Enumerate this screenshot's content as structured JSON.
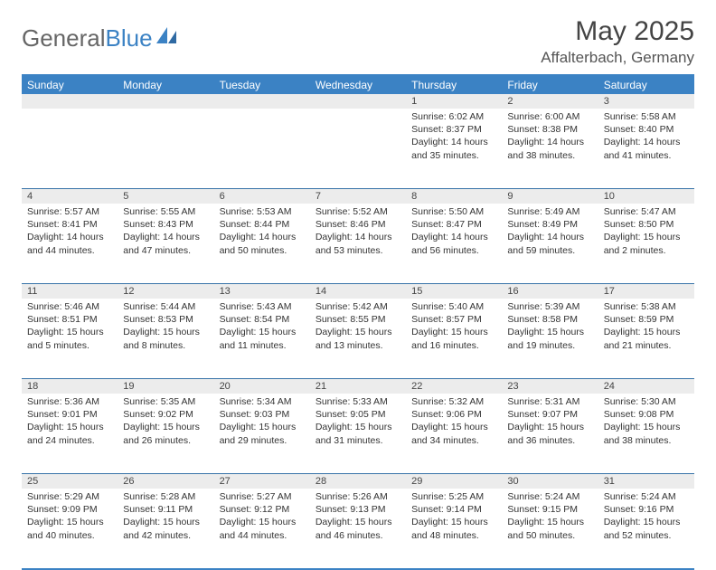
{
  "logo": {
    "part1": "General",
    "part2": "Blue"
  },
  "title": "May 2025",
  "location": "Affalterbach, Germany",
  "colors": {
    "header_bg": "#3b82c4",
    "header_text": "#ffffff",
    "daynum_bg": "#ececec",
    "border": "#3773a8",
    "text": "#333333"
  },
  "day_headers": [
    "Sunday",
    "Monday",
    "Tuesday",
    "Wednesday",
    "Thursday",
    "Friday",
    "Saturday"
  ],
  "weeks": [
    [
      {
        "day": "",
        "sunrise": "",
        "sunset": "",
        "daylight1": "",
        "daylight2": ""
      },
      {
        "day": "",
        "sunrise": "",
        "sunset": "",
        "daylight1": "",
        "daylight2": ""
      },
      {
        "day": "",
        "sunrise": "",
        "sunset": "",
        "daylight1": "",
        "daylight2": ""
      },
      {
        "day": "",
        "sunrise": "",
        "sunset": "",
        "daylight1": "",
        "daylight2": ""
      },
      {
        "day": "1",
        "sunrise": "Sunrise: 6:02 AM",
        "sunset": "Sunset: 8:37 PM",
        "daylight1": "Daylight: 14 hours",
        "daylight2": "and 35 minutes."
      },
      {
        "day": "2",
        "sunrise": "Sunrise: 6:00 AM",
        "sunset": "Sunset: 8:38 PM",
        "daylight1": "Daylight: 14 hours",
        "daylight2": "and 38 minutes."
      },
      {
        "day": "3",
        "sunrise": "Sunrise: 5:58 AM",
        "sunset": "Sunset: 8:40 PM",
        "daylight1": "Daylight: 14 hours",
        "daylight2": "and 41 minutes."
      }
    ],
    [
      {
        "day": "4",
        "sunrise": "Sunrise: 5:57 AM",
        "sunset": "Sunset: 8:41 PM",
        "daylight1": "Daylight: 14 hours",
        "daylight2": "and 44 minutes."
      },
      {
        "day": "5",
        "sunrise": "Sunrise: 5:55 AM",
        "sunset": "Sunset: 8:43 PM",
        "daylight1": "Daylight: 14 hours",
        "daylight2": "and 47 minutes."
      },
      {
        "day": "6",
        "sunrise": "Sunrise: 5:53 AM",
        "sunset": "Sunset: 8:44 PM",
        "daylight1": "Daylight: 14 hours",
        "daylight2": "and 50 minutes."
      },
      {
        "day": "7",
        "sunrise": "Sunrise: 5:52 AM",
        "sunset": "Sunset: 8:46 PM",
        "daylight1": "Daylight: 14 hours",
        "daylight2": "and 53 minutes."
      },
      {
        "day": "8",
        "sunrise": "Sunrise: 5:50 AM",
        "sunset": "Sunset: 8:47 PM",
        "daylight1": "Daylight: 14 hours",
        "daylight2": "and 56 minutes."
      },
      {
        "day": "9",
        "sunrise": "Sunrise: 5:49 AM",
        "sunset": "Sunset: 8:49 PM",
        "daylight1": "Daylight: 14 hours",
        "daylight2": "and 59 minutes."
      },
      {
        "day": "10",
        "sunrise": "Sunrise: 5:47 AM",
        "sunset": "Sunset: 8:50 PM",
        "daylight1": "Daylight: 15 hours",
        "daylight2": "and 2 minutes."
      }
    ],
    [
      {
        "day": "11",
        "sunrise": "Sunrise: 5:46 AM",
        "sunset": "Sunset: 8:51 PM",
        "daylight1": "Daylight: 15 hours",
        "daylight2": "and 5 minutes."
      },
      {
        "day": "12",
        "sunrise": "Sunrise: 5:44 AM",
        "sunset": "Sunset: 8:53 PM",
        "daylight1": "Daylight: 15 hours",
        "daylight2": "and 8 minutes."
      },
      {
        "day": "13",
        "sunrise": "Sunrise: 5:43 AM",
        "sunset": "Sunset: 8:54 PM",
        "daylight1": "Daylight: 15 hours",
        "daylight2": "and 11 minutes."
      },
      {
        "day": "14",
        "sunrise": "Sunrise: 5:42 AM",
        "sunset": "Sunset: 8:55 PM",
        "daylight1": "Daylight: 15 hours",
        "daylight2": "and 13 minutes."
      },
      {
        "day": "15",
        "sunrise": "Sunrise: 5:40 AM",
        "sunset": "Sunset: 8:57 PM",
        "daylight1": "Daylight: 15 hours",
        "daylight2": "and 16 minutes."
      },
      {
        "day": "16",
        "sunrise": "Sunrise: 5:39 AM",
        "sunset": "Sunset: 8:58 PM",
        "daylight1": "Daylight: 15 hours",
        "daylight2": "and 19 minutes."
      },
      {
        "day": "17",
        "sunrise": "Sunrise: 5:38 AM",
        "sunset": "Sunset: 8:59 PM",
        "daylight1": "Daylight: 15 hours",
        "daylight2": "and 21 minutes."
      }
    ],
    [
      {
        "day": "18",
        "sunrise": "Sunrise: 5:36 AM",
        "sunset": "Sunset: 9:01 PM",
        "daylight1": "Daylight: 15 hours",
        "daylight2": "and 24 minutes."
      },
      {
        "day": "19",
        "sunrise": "Sunrise: 5:35 AM",
        "sunset": "Sunset: 9:02 PM",
        "daylight1": "Daylight: 15 hours",
        "daylight2": "and 26 minutes."
      },
      {
        "day": "20",
        "sunrise": "Sunrise: 5:34 AM",
        "sunset": "Sunset: 9:03 PM",
        "daylight1": "Daylight: 15 hours",
        "daylight2": "and 29 minutes."
      },
      {
        "day": "21",
        "sunrise": "Sunrise: 5:33 AM",
        "sunset": "Sunset: 9:05 PM",
        "daylight1": "Daylight: 15 hours",
        "daylight2": "and 31 minutes."
      },
      {
        "day": "22",
        "sunrise": "Sunrise: 5:32 AM",
        "sunset": "Sunset: 9:06 PM",
        "daylight1": "Daylight: 15 hours",
        "daylight2": "and 34 minutes."
      },
      {
        "day": "23",
        "sunrise": "Sunrise: 5:31 AM",
        "sunset": "Sunset: 9:07 PM",
        "daylight1": "Daylight: 15 hours",
        "daylight2": "and 36 minutes."
      },
      {
        "day": "24",
        "sunrise": "Sunrise: 5:30 AM",
        "sunset": "Sunset: 9:08 PM",
        "daylight1": "Daylight: 15 hours",
        "daylight2": "and 38 minutes."
      }
    ],
    [
      {
        "day": "25",
        "sunrise": "Sunrise: 5:29 AM",
        "sunset": "Sunset: 9:09 PM",
        "daylight1": "Daylight: 15 hours",
        "daylight2": "and 40 minutes."
      },
      {
        "day": "26",
        "sunrise": "Sunrise: 5:28 AM",
        "sunset": "Sunset: 9:11 PM",
        "daylight1": "Daylight: 15 hours",
        "daylight2": "and 42 minutes."
      },
      {
        "day": "27",
        "sunrise": "Sunrise: 5:27 AM",
        "sunset": "Sunset: 9:12 PM",
        "daylight1": "Daylight: 15 hours",
        "daylight2": "and 44 minutes."
      },
      {
        "day": "28",
        "sunrise": "Sunrise: 5:26 AM",
        "sunset": "Sunset: 9:13 PM",
        "daylight1": "Daylight: 15 hours",
        "daylight2": "and 46 minutes."
      },
      {
        "day": "29",
        "sunrise": "Sunrise: 5:25 AM",
        "sunset": "Sunset: 9:14 PM",
        "daylight1": "Daylight: 15 hours",
        "daylight2": "and 48 minutes."
      },
      {
        "day": "30",
        "sunrise": "Sunrise: 5:24 AM",
        "sunset": "Sunset: 9:15 PM",
        "daylight1": "Daylight: 15 hours",
        "daylight2": "and 50 minutes."
      },
      {
        "day": "31",
        "sunrise": "Sunrise: 5:24 AM",
        "sunset": "Sunset: 9:16 PM",
        "daylight1": "Daylight: 15 hours",
        "daylight2": "and 52 minutes."
      }
    ]
  ]
}
